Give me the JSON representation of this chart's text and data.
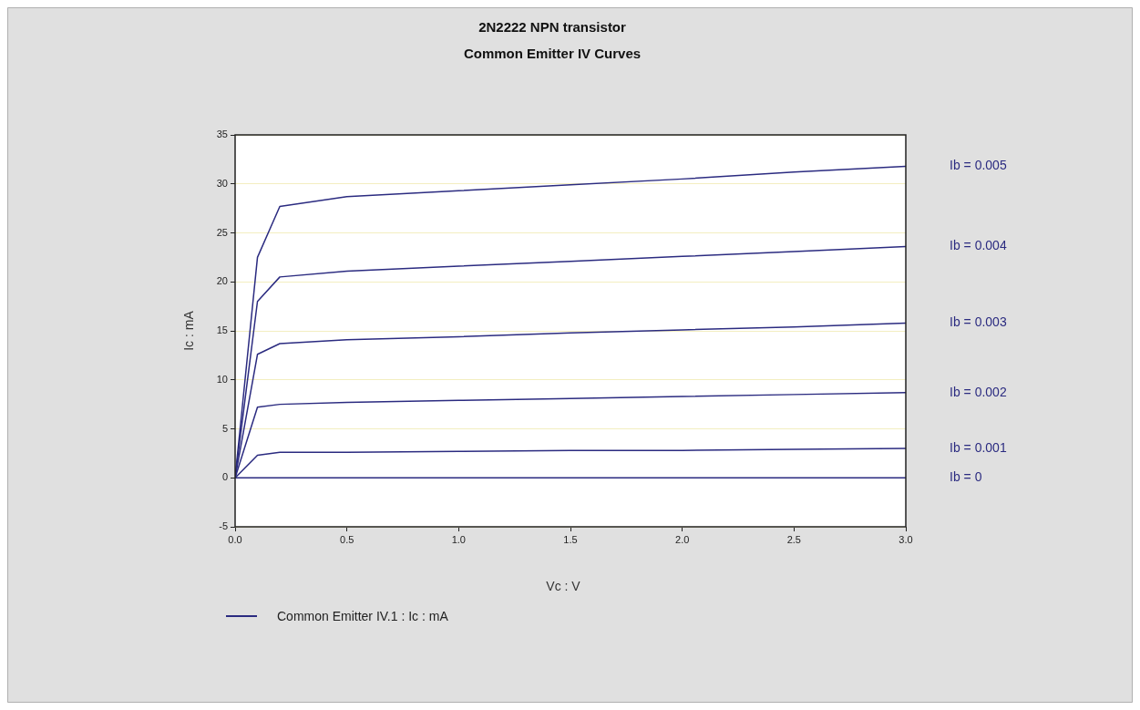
{
  "chart_data": {
    "type": "line",
    "title": "2N2222 NPN transistor",
    "subtitle": "Common Emitter IV Curves",
    "xlabel": "Vc : V",
    "ylabel": "Ic : mA",
    "legend_title": "Common Emitter IV.1 : Ic : mA",
    "grid": "y",
    "marker": "none",
    "line_style": "solid",
    "x": [
      0,
      0.1,
      0.2,
      0.5,
      1.0,
      1.5,
      2.0,
      2.5,
      3.0
    ],
    "series": [
      {
        "name": "Ib = 0.005",
        "color": "#2b2b80",
        "values": [
          0,
          22.5,
          27.7,
          28.7,
          29.3,
          29.9,
          30.5,
          31.2,
          31.8
        ]
      },
      {
        "name": "Ib = 0.004",
        "color": "#2b2b80",
        "values": [
          0,
          18,
          20.5,
          21.1,
          21.6,
          22.1,
          22.6,
          23.1,
          23.6
        ]
      },
      {
        "name": "Ib = 0.003",
        "color": "#2b2b80",
        "values": [
          0,
          12.6,
          13.7,
          14.1,
          14.4,
          14.8,
          15.1,
          15.4,
          15.8
        ]
      },
      {
        "name": "Ib = 0.002",
        "color": "#2b2b80",
        "values": [
          0,
          7.2,
          7.5,
          7.7,
          7.9,
          8.1,
          8.3,
          8.5,
          8.7
        ]
      },
      {
        "name": "Ib = 0.001",
        "color": "#2b2b80",
        "values": [
          0,
          2.3,
          2.6,
          2.6,
          2.7,
          2.8,
          2.8,
          2.9,
          3.0
        ]
      },
      {
        "name": "Ib = 0",
        "color": "#2b2b80",
        "values": [
          0,
          0,
          0,
          0,
          0,
          0,
          0,
          0,
          0
        ]
      }
    ],
    "xlim": [
      0,
      3
    ],
    "xticks": [
      {
        "value": 0,
        "label": "0.0"
      },
      {
        "value": 0.5,
        "label": "0.5"
      },
      {
        "value": 1,
        "label": "1.0"
      },
      {
        "value": 1.5,
        "label": "1.5"
      },
      {
        "value": 2,
        "label": "2.0"
      },
      {
        "value": 2.5,
        "label": "2.5"
      },
      {
        "value": 3,
        "label": "3.0"
      }
    ],
    "ylim": [
      -5,
      35
    ],
    "yticks": [
      -5,
      0,
      5,
      10,
      15,
      20,
      25,
      30,
      35
    ]
  }
}
